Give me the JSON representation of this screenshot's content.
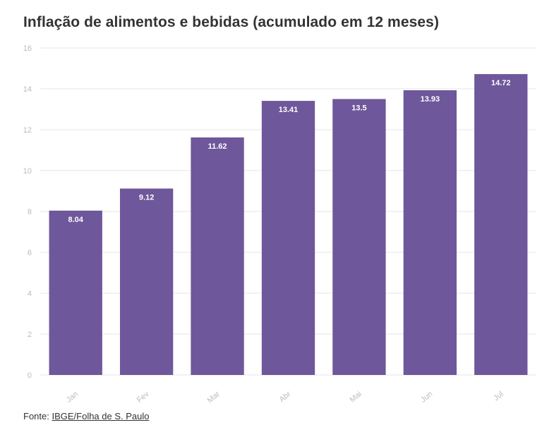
{
  "title": "Inflação de alimentos e bebidas (acumulado em 12 meses)",
  "source": {
    "prefix": "Fonte: ",
    "link_text": "IBGE/Folha de S. Paulo"
  },
  "colors": {
    "bar": "#6e579a",
    "grid": "#e6e6e6",
    "tick": "#bbbbbb",
    "label": "#ffffff"
  },
  "chart_data": {
    "type": "bar",
    "title": "Inflação de alimentos e bebidas (acumulado em 12 meses)",
    "categories": [
      "Jan",
      "Fev",
      "Mar",
      "Abr",
      "Mai",
      "Jun",
      "Jul"
    ],
    "values": [
      8.04,
      9.12,
      11.62,
      13.41,
      13.5,
      13.93,
      14.72
    ],
    "value_labels": [
      "8.04",
      "9.12",
      "11.62",
      "13.41",
      "13.5",
      "13.93",
      "14.72"
    ],
    "ylim": [
      0,
      16
    ],
    "yticks": [
      0,
      2,
      4,
      6,
      8,
      10,
      12,
      14,
      16
    ],
    "grid": true,
    "legend": "none"
  }
}
